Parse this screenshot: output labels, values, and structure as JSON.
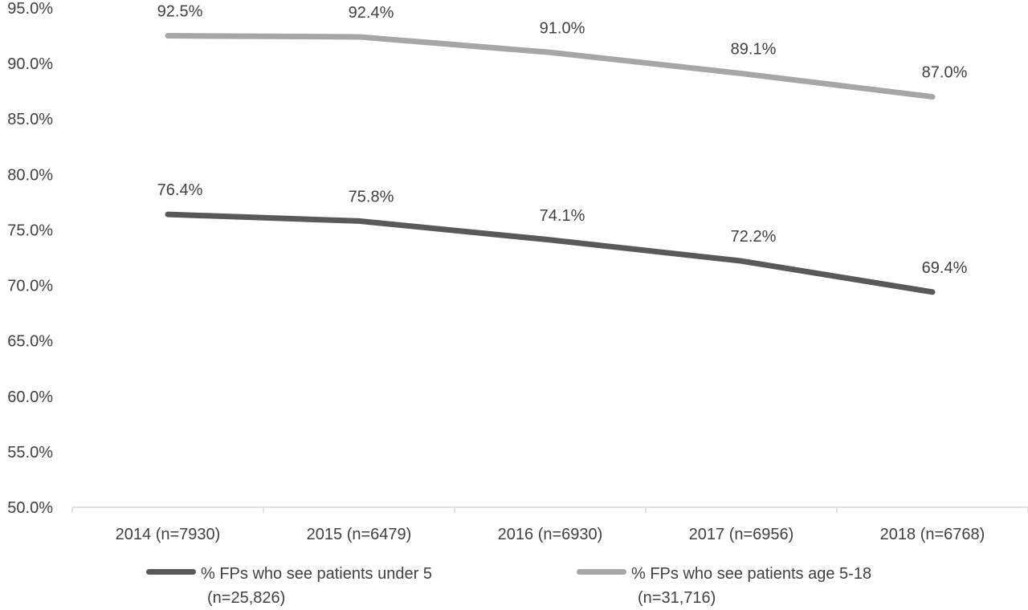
{
  "chart_data": {
    "type": "line",
    "title": "",
    "xlabel": "",
    "ylabel": "",
    "categories": [
      "2014 (n=7930)",
      "2015 (n=6479)",
      "2016 (n=6930)",
      "2017 (n=6956)",
      "2018 (n=6768)"
    ],
    "ylim": [
      50.0,
      95.0
    ],
    "yticks": [
      "50.0%",
      "55.0%",
      "60.0%",
      "65.0%",
      "70.0%",
      "75.0%",
      "80.0%",
      "85.0%",
      "90.0%",
      "95.0%"
    ],
    "grid": false,
    "legend_position": "bottom",
    "series": [
      {
        "name": "% FPs who see patients under 5 (n=25,826)",
        "legend_line1": "% FPs who see patients under 5",
        "legend_line2": "(n=25,826)",
        "color": "#595959",
        "values": [
          76.4,
          75.8,
          74.1,
          72.2,
          69.4
        ],
        "labels": [
          "76.4%",
          "75.8%",
          "74.1%",
          "72.2%",
          "69.4%"
        ]
      },
      {
        "name": "% FPs who see patients age 5-18 (n=31,716)",
        "legend_line1": "% FPs who see patients age 5-18",
        "legend_line2": "(n=31,716)",
        "color": "#a6a6a6",
        "values": [
          92.5,
          92.4,
          91.0,
          89.1,
          87.0
        ],
        "labels": [
          "92.5%",
          "92.4%",
          "91.0%",
          "89.1%",
          "87.0%"
        ]
      }
    ]
  }
}
